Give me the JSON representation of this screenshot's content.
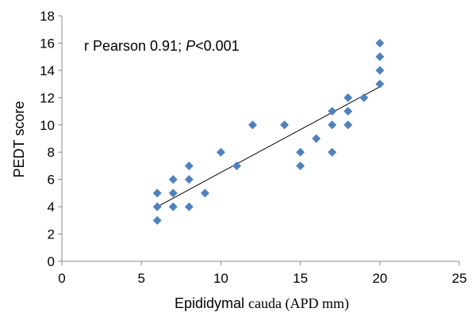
{
  "chart_data": {
    "type": "scatter",
    "ylabel": "PEDT score",
    "xlabel_main": "Epididymal ",
    "xlabel_rest": "cauda (APD mm)",
    "annotation": {
      "prefix": "r Pearson 0.91; ",
      "p_italic": "P",
      "suffix": "<0.001"
    },
    "xlim": [
      0,
      25
    ],
    "ylim": [
      0,
      18
    ],
    "xticks": [
      "0",
      "5",
      "10",
      "15",
      "20",
      "25"
    ],
    "yticks": [
      "0",
      "2",
      "4",
      "6",
      "8",
      "10",
      "12",
      "14",
      "16",
      "18"
    ],
    "marker_color": "#4f81bd",
    "trendline_color": "#000000",
    "grid": false,
    "points": [
      [
        6,
        3
      ],
      [
        6,
        4
      ],
      [
        6,
        5
      ],
      [
        7,
        4
      ],
      [
        7,
        5
      ],
      [
        7,
        6
      ],
      [
        8,
        4
      ],
      [
        8,
        6
      ],
      [
        8,
        7
      ],
      [
        9,
        5
      ],
      [
        10,
        8
      ],
      [
        11,
        7
      ],
      [
        12,
        10
      ],
      [
        14,
        10
      ],
      [
        15,
        7
      ],
      [
        15,
        8
      ],
      [
        16,
        9
      ],
      [
        17,
        8
      ],
      [
        17,
        10
      ],
      [
        17,
        11
      ],
      [
        18,
        10
      ],
      [
        18,
        11
      ],
      [
        18,
        12
      ],
      [
        19,
        12
      ],
      [
        20,
        13
      ],
      [
        20,
        14
      ],
      [
        20,
        15
      ],
      [
        20,
        16
      ]
    ],
    "trendline": [
      [
        6,
        4.0
      ],
      [
        20,
        12.8
      ]
    ]
  }
}
